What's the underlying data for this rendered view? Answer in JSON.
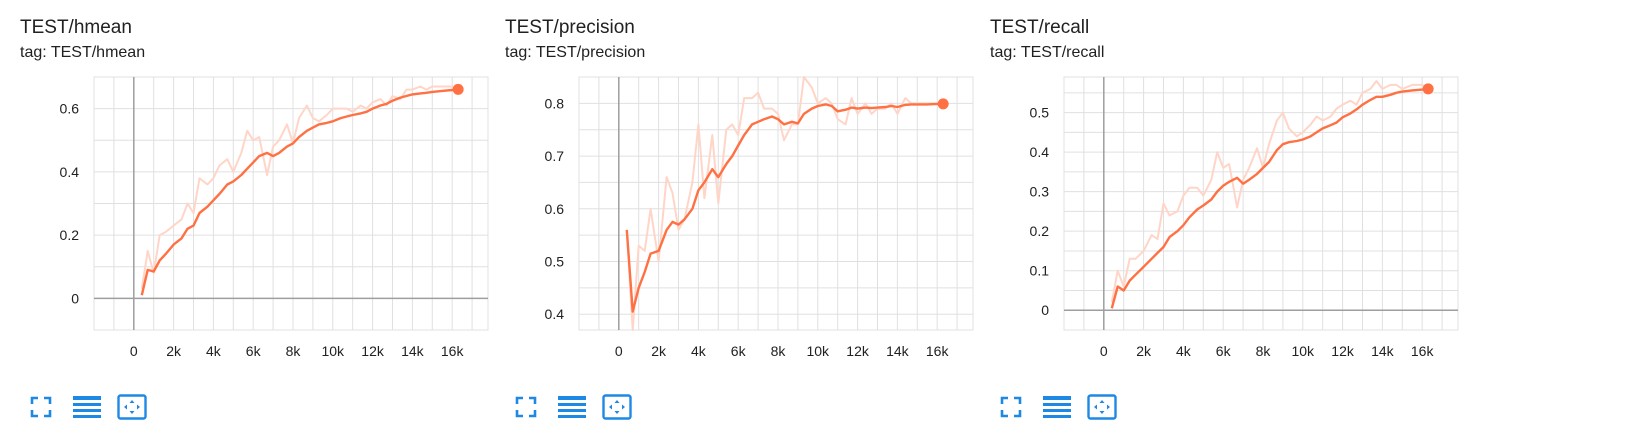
{
  "colors": {
    "smoothed": "#ff7043",
    "raw": "#ffd5c8",
    "grid": "#e0e0e0",
    "axis": "#9e9e9e",
    "tick_text": "#212121",
    "icon": "#1e88e5"
  },
  "toolbar_icons": [
    "fullscreen-icon",
    "toggle-y-log-icon",
    "fit-domain-icon"
  ],
  "chart_data": [
    {
      "type": "line",
      "title": "TEST/hmean",
      "tag": "tag: TEST/hmean",
      "xlim": [
        -2000,
        17800
      ],
      "ylim": [
        -0.1,
        0.7
      ],
      "xticks": [
        0,
        2000,
        4000,
        6000,
        8000,
        10000,
        12000,
        14000,
        16000
      ],
      "xtick_labels": [
        "0",
        "2k",
        "4k",
        "6k",
        "8k",
        "10k",
        "12k",
        "14k",
        "16k"
      ],
      "yticks": [
        0,
        0.2,
        0.4,
        0.6
      ],
      "ytick_labels": [
        "0",
        "0.2",
        "0.4",
        "0.6"
      ],
      "series": [
        {
          "name": "raw",
          "x": [
            400,
            700,
            1000,
            1300,
            1600,
            2000,
            2400,
            2700,
            3000,
            3300,
            3700,
            4000,
            4300,
            4700,
            5000,
            5400,
            5700,
            6000,
            6300,
            6700,
            7000,
            7300,
            7700,
            8000,
            8300,
            8700,
            9000,
            9300,
            9700,
            10000,
            10400,
            10700,
            11000,
            11400,
            11700,
            12000,
            12400,
            12700,
            13000,
            13400,
            13700,
            14000,
            14400,
            14700,
            15000,
            15500,
            16000,
            16300
          ],
          "y": [
            0.03,
            0.15,
            0.08,
            0.2,
            0.21,
            0.23,
            0.25,
            0.3,
            0.27,
            0.38,
            0.36,
            0.38,
            0.42,
            0.44,
            0.4,
            0.46,
            0.53,
            0.5,
            0.51,
            0.39,
            0.48,
            0.5,
            0.55,
            0.49,
            0.57,
            0.61,
            0.57,
            0.56,
            0.58,
            0.6,
            0.6,
            0.6,
            0.59,
            0.61,
            0.6,
            0.62,
            0.63,
            0.61,
            0.64,
            0.63,
            0.66,
            0.66,
            0.67,
            0.66,
            0.67,
            0.67,
            0.67,
            0.66
          ]
        },
        {
          "name": "smoothed",
          "x": [
            400,
            700,
            1000,
            1300,
            1600,
            2000,
            2400,
            2700,
            3000,
            3300,
            3700,
            4000,
            4300,
            4700,
            5000,
            5400,
            5700,
            6000,
            6300,
            6700,
            7000,
            7300,
            7700,
            8000,
            8300,
            8700,
            9000,
            9300,
            9700,
            10000,
            10400,
            10700,
            11000,
            11400,
            11700,
            12000,
            12400,
            12700,
            13000,
            13400,
            13700,
            14000,
            14400,
            14700,
            15000,
            15500,
            16000,
            16300
          ],
          "y": [
            0.01,
            0.09,
            0.085,
            0.12,
            0.14,
            0.17,
            0.19,
            0.22,
            0.23,
            0.27,
            0.29,
            0.31,
            0.33,
            0.36,
            0.37,
            0.39,
            0.41,
            0.43,
            0.45,
            0.46,
            0.45,
            0.46,
            0.48,
            0.49,
            0.51,
            0.53,
            0.54,
            0.55,
            0.555,
            0.56,
            0.57,
            0.575,
            0.58,
            0.585,
            0.59,
            0.6,
            0.61,
            0.615,
            0.625,
            0.635,
            0.64,
            0.645,
            0.648,
            0.65,
            0.653,
            0.656,
            0.659,
            0.661
          ]
        }
      ]
    },
    {
      "type": "line",
      "title": "TEST/precision",
      "tag": "tag: TEST/precision",
      "xlim": [
        -2000,
        17800
      ],
      "ylim": [
        0.37,
        0.85
      ],
      "xticks": [
        0,
        2000,
        4000,
        6000,
        8000,
        10000,
        12000,
        14000,
        16000
      ],
      "xtick_labels": [
        "0",
        "2k",
        "4k",
        "6k",
        "8k",
        "10k",
        "12k",
        "14k",
        "16k"
      ],
      "yticks": [
        0.4,
        0.5,
        0.6,
        0.7,
        0.8
      ],
      "ytick_labels": [
        "0.4",
        "0.5",
        "0.6",
        "0.7",
        "0.8"
      ],
      "series": [
        {
          "name": "raw",
          "x": [
            400,
            700,
            1000,
            1300,
            1600,
            2000,
            2400,
            2700,
            3000,
            3300,
            3700,
            4000,
            4300,
            4700,
            5000,
            5400,
            5700,
            6000,
            6300,
            6700,
            7000,
            7300,
            7700,
            8000,
            8300,
            8700,
            9000,
            9300,
            9700,
            10000,
            10400,
            10700,
            11000,
            11400,
            11700,
            12000,
            12400,
            12700,
            13000,
            13400,
            13700,
            14000,
            14400,
            14700,
            15000,
            15500,
            16000,
            16300
          ],
          "y": [
            0.56,
            0.37,
            0.53,
            0.52,
            0.6,
            0.5,
            0.66,
            0.63,
            0.56,
            0.58,
            0.65,
            0.76,
            0.62,
            0.74,
            0.61,
            0.75,
            0.76,
            0.74,
            0.81,
            0.81,
            0.82,
            0.79,
            0.79,
            0.78,
            0.73,
            0.76,
            0.76,
            0.85,
            0.83,
            0.8,
            0.81,
            0.8,
            0.77,
            0.76,
            0.81,
            0.78,
            0.8,
            0.78,
            0.79,
            0.79,
            0.8,
            0.78,
            0.81,
            0.8,
            0.8,
            0.8,
            0.8,
            0.8
          ]
        },
        {
          "name": "smoothed",
          "x": [
            400,
            700,
            1000,
            1300,
            1600,
            2000,
            2400,
            2700,
            3000,
            3300,
            3700,
            4000,
            4300,
            4700,
            5000,
            5400,
            5700,
            6000,
            6300,
            6700,
            7000,
            7300,
            7700,
            8000,
            8300,
            8700,
            9000,
            9300,
            9700,
            10000,
            10400,
            10700,
            11000,
            11400,
            11700,
            12000,
            12400,
            12700,
            13000,
            13400,
            13700,
            14000,
            14400,
            14700,
            15000,
            15500,
            16000,
            16300
          ],
          "y": [
            0.56,
            0.405,
            0.45,
            0.48,
            0.515,
            0.52,
            0.56,
            0.575,
            0.57,
            0.58,
            0.6,
            0.635,
            0.65,
            0.675,
            0.66,
            0.685,
            0.7,
            0.72,
            0.74,
            0.76,
            0.765,
            0.77,
            0.775,
            0.77,
            0.76,
            0.765,
            0.762,
            0.78,
            0.79,
            0.795,
            0.798,
            0.795,
            0.785,
            0.788,
            0.792,
            0.79,
            0.792,
            0.791,
            0.792,
            0.793,
            0.795,
            0.793,
            0.797,
            0.798,
            0.798,
            0.798,
            0.799,
            0.799
          ]
        }
      ]
    },
    {
      "type": "line",
      "title": "TEST/recall",
      "tag": "tag: TEST/recall",
      "xlim": [
        -2000,
        17800
      ],
      "ylim": [
        -0.05,
        0.59
      ],
      "xticks": [
        0,
        2000,
        4000,
        6000,
        8000,
        10000,
        12000,
        14000,
        16000
      ],
      "xtick_labels": [
        "0",
        "2k",
        "4k",
        "6k",
        "8k",
        "10k",
        "12k",
        "14k",
        "16k"
      ],
      "yticks": [
        0,
        0.1,
        0.2,
        0.3,
        0.4,
        0.5
      ],
      "ytick_labels": [
        "0",
        "0.1",
        "0.2",
        "0.3",
        "0.4",
        "0.5"
      ],
      "series": [
        {
          "name": "raw",
          "x": [
            400,
            700,
            1000,
            1300,
            1600,
            2000,
            2400,
            2700,
            3000,
            3300,
            3700,
            4000,
            4300,
            4700,
            5000,
            5400,
            5700,
            6000,
            6300,
            6700,
            7000,
            7300,
            7700,
            8000,
            8300,
            8700,
            9000,
            9300,
            9700,
            10000,
            10400,
            10700,
            11000,
            11400,
            11700,
            12000,
            12400,
            12700,
            13000,
            13400,
            13700,
            14000,
            14400,
            14700,
            15000,
            15500,
            16000,
            16300
          ],
          "y": [
            0.02,
            0.1,
            0.06,
            0.13,
            0.13,
            0.15,
            0.19,
            0.18,
            0.27,
            0.24,
            0.25,
            0.29,
            0.31,
            0.31,
            0.29,
            0.33,
            0.4,
            0.36,
            0.37,
            0.26,
            0.33,
            0.36,
            0.41,
            0.36,
            0.42,
            0.48,
            0.5,
            0.46,
            0.44,
            0.45,
            0.47,
            0.49,
            0.48,
            0.49,
            0.51,
            0.52,
            0.53,
            0.52,
            0.55,
            0.56,
            0.58,
            0.56,
            0.57,
            0.57,
            0.56,
            0.57,
            0.57,
            0.56
          ]
        },
        {
          "name": "smoothed",
          "x": [
            400,
            700,
            1000,
            1300,
            1600,
            2000,
            2400,
            2700,
            3000,
            3300,
            3700,
            4000,
            4300,
            4700,
            5000,
            5400,
            5700,
            6000,
            6300,
            6700,
            7000,
            7300,
            7700,
            8000,
            8300,
            8700,
            9000,
            9300,
            9700,
            10000,
            10400,
            10700,
            11000,
            11400,
            11700,
            12000,
            12400,
            12700,
            13000,
            13400,
            13700,
            14000,
            14400,
            14700,
            15000,
            15500,
            16000,
            16300
          ],
          "y": [
            0.005,
            0.06,
            0.05,
            0.075,
            0.09,
            0.11,
            0.13,
            0.145,
            0.16,
            0.185,
            0.2,
            0.215,
            0.235,
            0.255,
            0.265,
            0.28,
            0.3,
            0.315,
            0.325,
            0.335,
            0.32,
            0.33,
            0.345,
            0.36,
            0.375,
            0.405,
            0.42,
            0.425,
            0.428,
            0.432,
            0.44,
            0.45,
            0.46,
            0.468,
            0.475,
            0.488,
            0.498,
            0.508,
            0.52,
            0.532,
            0.54,
            0.54,
            0.545,
            0.55,
            0.553,
            0.556,
            0.558,
            0.56
          ]
        }
      ]
    }
  ]
}
